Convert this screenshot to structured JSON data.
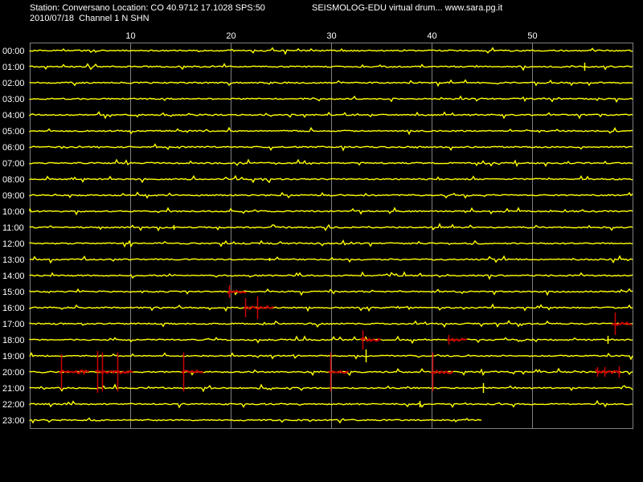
{
  "header": {
    "station_line": "Station: Conversano Location: CO 40.9712 17.1028 SPS:50",
    "brand_line": "SEISMOLOG-EDU virtual drum... www.sara.pg.it",
    "date_line": "2010/07/18  Channel 1 N SHN"
  },
  "colors": {
    "background": "#000000",
    "trace": "#ffff00",
    "event": "#cc0000",
    "grid": "#808080",
    "text": "#ffffff"
  },
  "chart_data": {
    "type": "line",
    "title": "",
    "xlabel": "",
    "ylabel": "",
    "xlim": [
      0,
      60
    ],
    "x_ticks": [
      "10",
      "20",
      "30",
      "40",
      "50"
    ],
    "x_tick_values": [
      10,
      20,
      30,
      40,
      50
    ],
    "rows": [
      "00:00",
      "01:00",
      "02:00",
      "03:00",
      "04:00",
      "05:00",
      "06:00",
      "07:00",
      "08:00",
      "09:00",
      "10:00",
      "11:00",
      "12:00",
      "13:00",
      "14:00",
      "15:00",
      "16:00",
      "17:00",
      "18:00",
      "19:00",
      "20:00",
      "21:00",
      "22:00",
      "23:00"
    ],
    "last_row_end_minute": 45,
    "trace_color": "yellow",
    "event_color": "red",
    "events": [
      {
        "row": "15:00",
        "start": 19.8,
        "end": 21.7
      },
      {
        "row": "16:00",
        "start": 21.4,
        "end": 24.4
      },
      {
        "row": "17:00",
        "start": 58.0,
        "end": 60.0
      },
      {
        "row": "18:00",
        "start": 33.0,
        "end": 35.0
      },
      {
        "row": "18:00",
        "start": 41.6,
        "end": 43.6
      },
      {
        "row": "20:00",
        "start": 3.0,
        "end": 6.0
      },
      {
        "row": "20:00",
        "start": 6.6,
        "end": 10.4
      },
      {
        "row": "20:00",
        "start": 15.2,
        "end": 17.4
      },
      {
        "row": "20:00",
        "start": 29.8,
        "end": 31.8
      },
      {
        "row": "20:00",
        "start": 40.0,
        "end": 42.2
      },
      {
        "row": "20:00",
        "start": 56.4,
        "end": 58.8
      }
    ],
    "spikes": [
      {
        "row": "01:00",
        "minute": 55.2,
        "amp": 5
      },
      {
        "row": "11:00",
        "minute": 14.3,
        "amp": 3
      },
      {
        "row": "13:00",
        "minute": 23.8,
        "amp": 2
      },
      {
        "row": "15:00",
        "minute": 19.8,
        "amp": 8
      },
      {
        "row": "16:00",
        "minute": 21.4,
        "amp": 12
      },
      {
        "row": "16:00",
        "minute": 22.6,
        "amp": 14
      },
      {
        "row": "17:00",
        "minute": 58.2,
        "amp": 14
      },
      {
        "row": "18:00",
        "minute": 33.1,
        "amp": 12
      },
      {
        "row": "18:00",
        "minute": 41.7,
        "amp": 6
      },
      {
        "row": "18:00",
        "minute": 57.5,
        "amp": 5
      },
      {
        "row": "19:00",
        "minute": 33.4,
        "amp": 8
      },
      {
        "row": "20:00",
        "minute": 3.1,
        "amp": 22
      },
      {
        "row": "20:00",
        "minute": 6.7,
        "amp": 26
      },
      {
        "row": "20:00",
        "minute": 7.2,
        "amp": 24
      },
      {
        "row": "20:00",
        "minute": 8.7,
        "amp": 24
      },
      {
        "row": "20:00",
        "minute": 15.3,
        "amp": 24
      },
      {
        "row": "20:00",
        "minute": 29.9,
        "amp": 24
      },
      {
        "row": "20:00",
        "minute": 40.1,
        "amp": 24
      },
      {
        "row": "20:00",
        "minute": 56.5,
        "amp": 6
      },
      {
        "row": "20:00",
        "minute": 57.2,
        "amp": 6
      },
      {
        "row": "20:00",
        "minute": 58.6,
        "amp": 7
      },
      {
        "row": "21:00",
        "minute": 45.1,
        "amp": 6
      },
      {
        "row": "22:00",
        "minute": 38.8,
        "amp": 4
      }
    ]
  }
}
